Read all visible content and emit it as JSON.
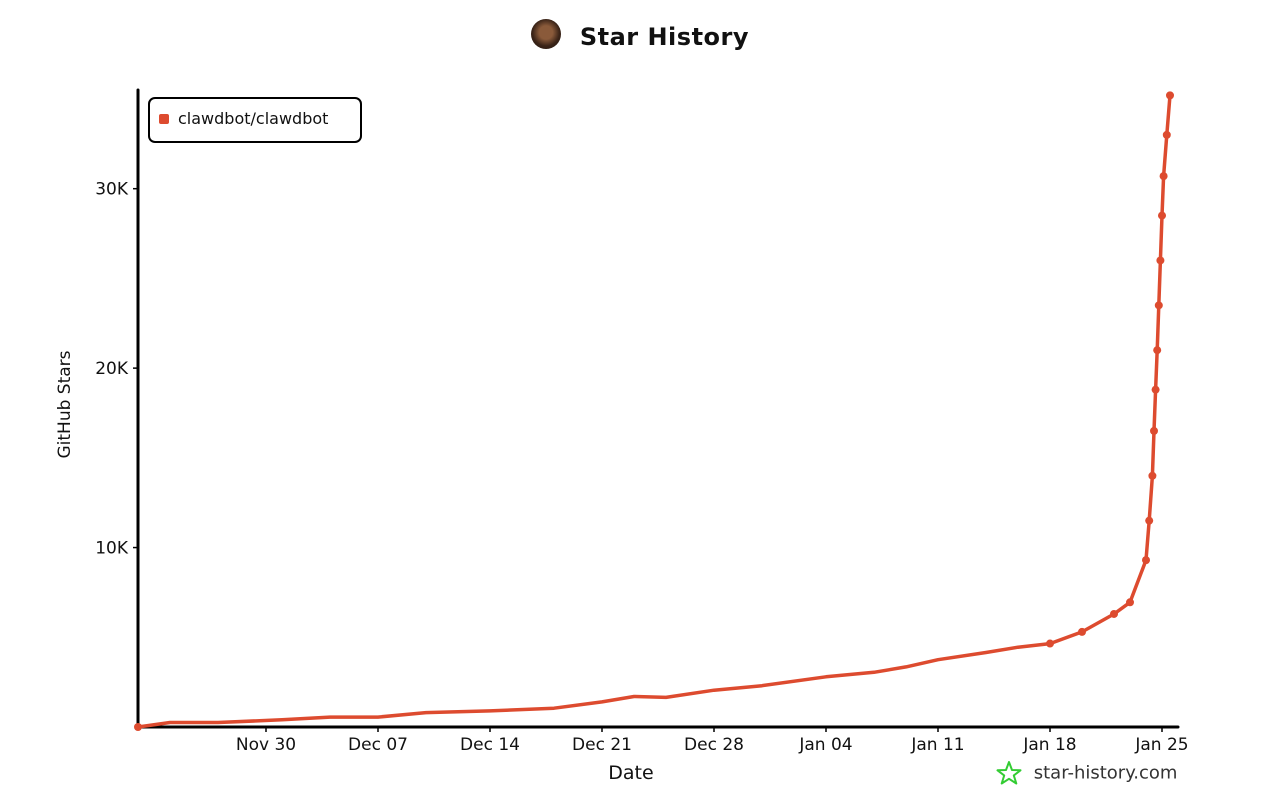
{
  "header": {
    "title": "Star History",
    "avatar_icon": "avatar-icon"
  },
  "brand": {
    "text": "star-history.com",
    "icon": "star-outline-icon",
    "color": "#33cc33"
  },
  "colors": {
    "series": "#dd4b2f",
    "axis": "#000000"
  },
  "chart_data": {
    "type": "line",
    "title": "Star History",
    "xlabel": "Date",
    "ylabel": "GitHub Stars",
    "ylim": [
      0,
      35500
    ],
    "xlim": [
      "2025-11-22",
      "2026-01-26"
    ],
    "x_ticks": [
      {
        "date": "2025-11-30",
        "label": "Nov 30"
      },
      {
        "date": "2025-12-07",
        "label": "Dec 07"
      },
      {
        "date": "2025-12-14",
        "label": "Dec 14"
      },
      {
        "date": "2025-12-21",
        "label": "Dec 21"
      },
      {
        "date": "2025-12-28",
        "label": "Dec 28"
      },
      {
        "date": "2026-01-04",
        "label": "Jan 04"
      },
      {
        "date": "2026-01-11",
        "label": "Jan 11"
      },
      {
        "date": "2026-01-18",
        "label": "Jan 18"
      },
      {
        "date": "2026-01-25",
        "label": "Jan 25"
      }
    ],
    "y_ticks": [
      {
        "value": 10000,
        "label": "10K"
      },
      {
        "value": 20000,
        "label": "20K"
      },
      {
        "value": 30000,
        "label": "30K"
      }
    ],
    "legend": "top-left",
    "grid": false,
    "series": [
      {
        "name": "clawdbot/clawdbot",
        "color": "#dd4b2f",
        "points": [
          {
            "x": "2025-11-22",
            "y": 0
          },
          {
            "x": "2025-11-24",
            "y": 250
          },
          {
            "x": "2025-11-27",
            "y": 250
          },
          {
            "x": "2025-12-01",
            "y": 400
          },
          {
            "x": "2025-12-04",
            "y": 550
          },
          {
            "x": "2025-12-07",
            "y": 550
          },
          {
            "x": "2025-12-10",
            "y": 800
          },
          {
            "x": "2025-12-14",
            "y": 900
          },
          {
            "x": "2025-12-18",
            "y": 1050
          },
          {
            "x": "2025-12-21",
            "y": 1400
          },
          {
            "x": "2025-12-23",
            "y": 1700
          },
          {
            "x": "2025-12-25",
            "y": 1650
          },
          {
            "x": "2025-12-28",
            "y": 2050
          },
          {
            "x": "2025-12-31",
            "y": 2300
          },
          {
            "x": "2026-01-04",
            "y": 2800
          },
          {
            "x": "2026-01-07",
            "y": 3050
          },
          {
            "x": "2026-01-09",
            "y": 3350
          },
          {
            "x": "2026-01-11",
            "y": 3750
          },
          {
            "x": "2026-01-14",
            "y": 4150
          },
          {
            "x": "2026-01-16",
            "y": 4450
          },
          {
            "x": "2026-01-18",
            "y": 4650
          },
          {
            "x": "2026-01-20",
            "y": 5300
          },
          {
            "x": "2026-01-22",
            "y": 6300
          },
          {
            "x": "2026-01-23",
            "y": 6950
          },
          {
            "x": "2026-01-24",
            "y": 9300
          },
          {
            "x": "2026-01-24.2",
            "y": 11500
          },
          {
            "x": "2026-01-24.4",
            "y": 14000
          },
          {
            "x": "2026-01-24.5",
            "y": 16500
          },
          {
            "x": "2026-01-24.6",
            "y": 18800
          },
          {
            "x": "2026-01-24.7",
            "y": 21000
          },
          {
            "x": "2026-01-24.8",
            "y": 23500
          },
          {
            "x": "2026-01-24.9",
            "y": 26000
          },
          {
            "x": "2026-01-25.0",
            "y": 28500
          },
          {
            "x": "2026-01-25.1",
            "y": 30700
          },
          {
            "x": "2026-01-25.3",
            "y": 33000
          },
          {
            "x": "2026-01-25.5",
            "y": 35200
          }
        ]
      }
    ]
  }
}
